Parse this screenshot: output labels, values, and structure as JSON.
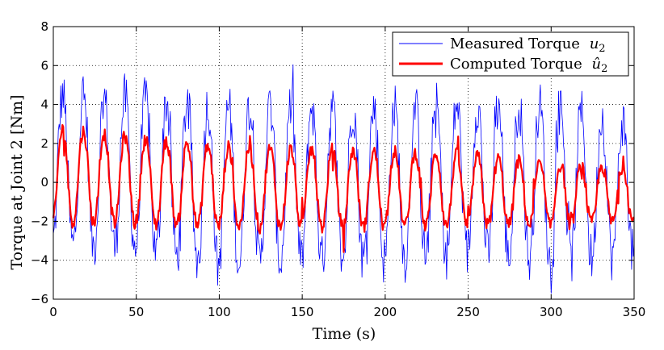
{
  "chart_data": {
    "type": "line",
    "title": "",
    "xlabel": "Time (s)",
    "ylabel": "Torque at Joint 2 [Nm]",
    "xlim": [
      0,
      350
    ],
    "ylim": [
      -6,
      8
    ],
    "grid": true,
    "grid_style": "dotted",
    "legend_position": "top-right",
    "x_ticks": [
      0,
      50,
      100,
      150,
      200,
      250,
      300,
      350
    ],
    "y_ticks": [
      -6,
      -4,
      -2,
      0,
      2,
      4,
      6,
      8
    ],
    "x_tick_labels": [
      "0",
      "50",
      "100",
      "150",
      "200",
      "250",
      "300",
      "350"
    ],
    "y_tick_labels": [
      "−6",
      "−4",
      "−2",
      "0",
      "2",
      "4",
      "6",
      "8"
    ],
    "period_s": 12.5,
    "sample_step_s": 0.5,
    "series": [
      {
        "name": "Measured Torque",
        "legend_sub": "2",
        "legend_math": "u",
        "color": "#0000ff",
        "envelope": {
          "time": [
            0,
            50,
            100,
            150,
            200,
            250,
            300,
            350
          ],
          "upper": [
            4.5,
            4.3,
            3.9,
            3.9,
            3.8,
            4.0,
            3.9,
            3.0
          ],
          "lower": [
            -3.2,
            -3.4,
            -4.3,
            -4.0,
            -4.0,
            -3.6,
            -4.1,
            -3.7
          ]
        }
      },
      {
        "name": "Computed Torque",
        "legend_sub": "2",
        "legend_math": "û",
        "color": "#ff0000",
        "envelope": {
          "time": [
            0,
            50,
            100,
            150,
            200,
            250,
            300,
            350
          ],
          "upper": [
            2.8,
            2.3,
            1.8,
            1.7,
            1.6,
            1.4,
            0.9,
            0.8
          ],
          "lower": [
            -2.0,
            -2.1,
            -2.3,
            -2.3,
            -2.3,
            -2.2,
            -2.2,
            -2.0
          ]
        }
      }
    ]
  }
}
